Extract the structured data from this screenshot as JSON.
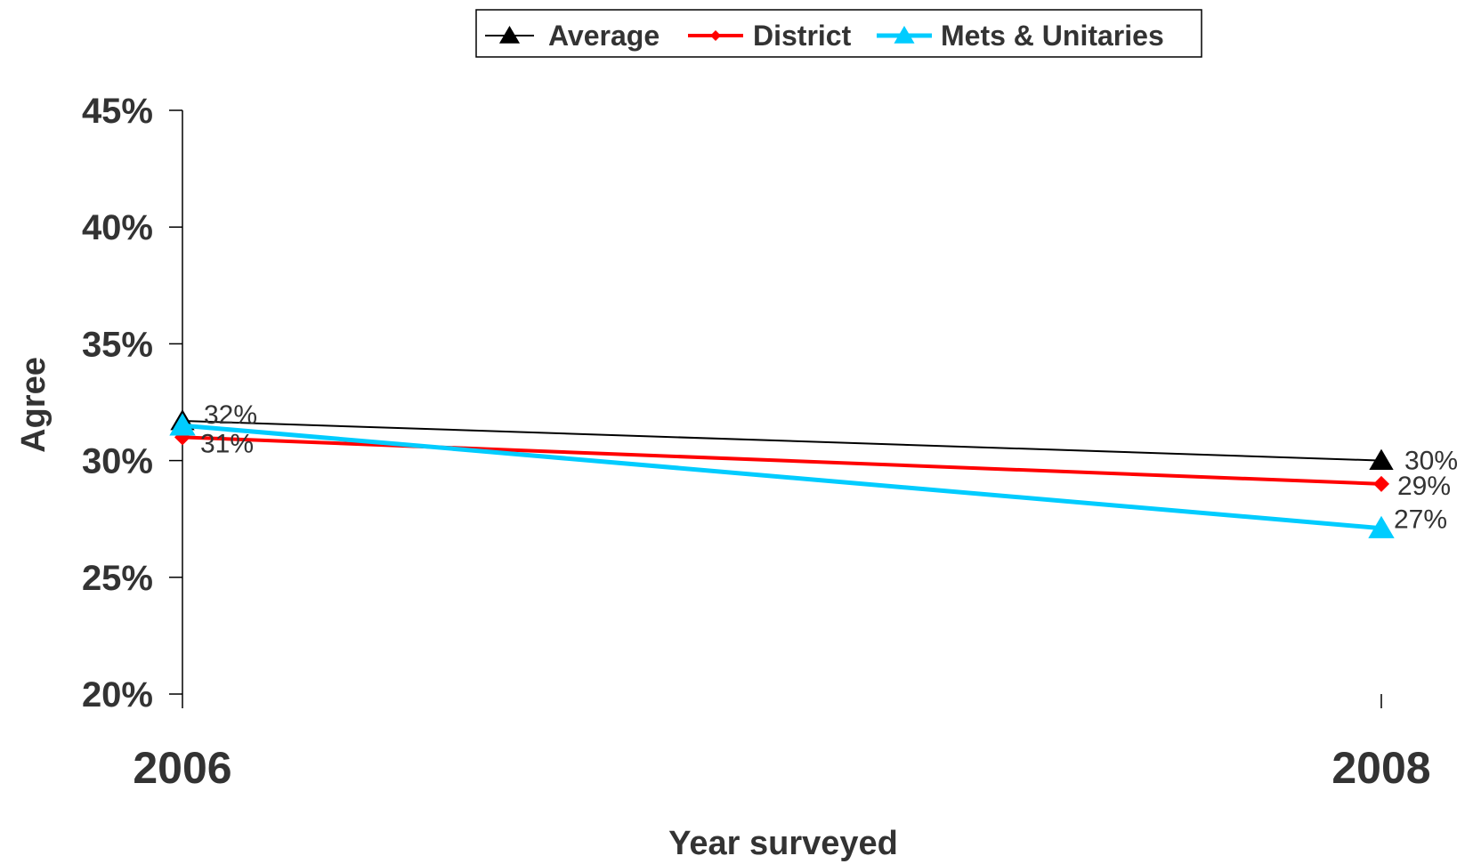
{
  "chart_data": {
    "type": "line",
    "categories": [
      "2006",
      "2008"
    ],
    "xlabel": "Year surveyed",
    "ylabel": "Agree",
    "ylim": [
      0.2,
      0.45
    ],
    "yticks": [
      "20%",
      "25%",
      "30%",
      "35%",
      "40%",
      "45%"
    ],
    "grid": false,
    "legend_position": "top-center",
    "series": [
      {
        "name": "Average",
        "values": [
          0.317,
          0.3
        ],
        "labels": [
          "32%",
          "30%"
        ],
        "color": "#000000",
        "marker": "triangle"
      },
      {
        "name": "District",
        "values": [
          0.31,
          0.29
        ],
        "labels": [
          "31%",
          "29%"
        ],
        "color": "#ff0000",
        "marker": "diamond"
      },
      {
        "name": "Mets & Unitaries",
        "values": [
          0.315,
          0.271
        ],
        "labels": [
          "",
          "27%"
        ],
        "color": "#00ccff",
        "marker": "triangle"
      }
    ]
  }
}
